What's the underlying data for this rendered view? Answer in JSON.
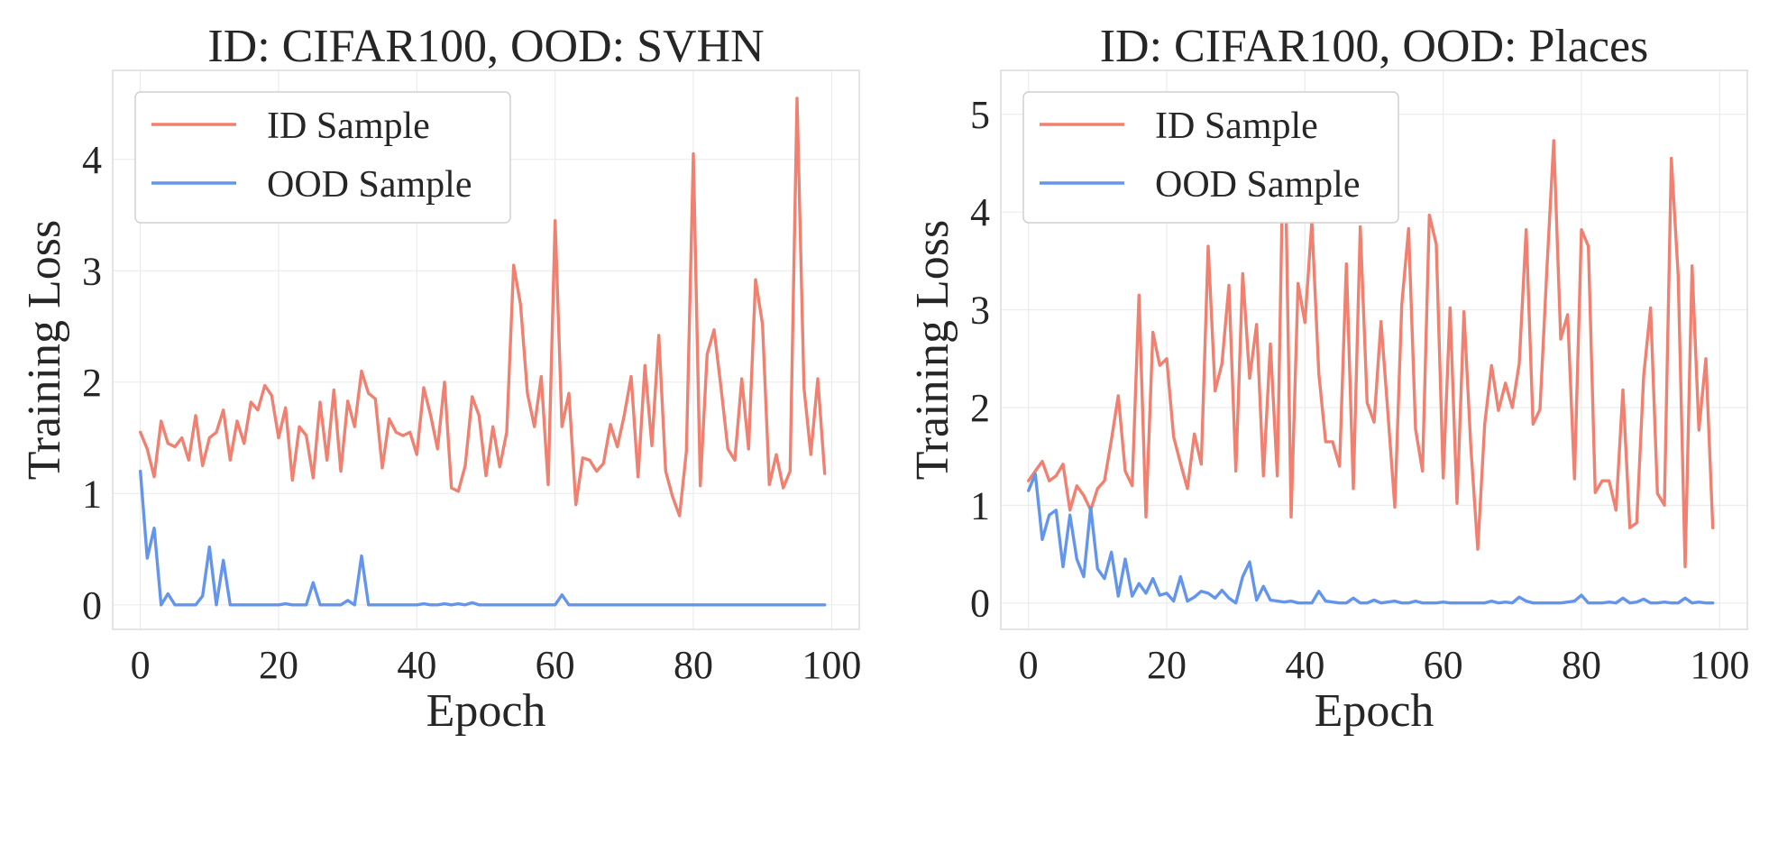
{
  "colors": {
    "id_sample": "#f08070",
    "ood_sample": "#6495ed"
  },
  "chart_data": [
    {
      "type": "line",
      "title": "ID: CIFAR100, OOD: SVHN",
      "xlabel": "Epoch",
      "ylabel": "Training Loss",
      "xlim": [
        -4,
        104
      ],
      "ylim": [
        -0.22,
        4.8
      ],
      "xticks": [
        0,
        20,
        40,
        60,
        80,
        100
      ],
      "yticks": [
        0,
        1,
        2,
        3,
        4
      ],
      "grid": true,
      "legend_position": "upper-left",
      "series": [
        {
          "name": "ID Sample",
          "color": "#f08070",
          "x": [
            0,
            1,
            2,
            3,
            4,
            5,
            6,
            7,
            8,
            9,
            10,
            11,
            12,
            13,
            14,
            15,
            16,
            17,
            18,
            19,
            20,
            21,
            22,
            23,
            24,
            25,
            26,
            27,
            28,
            29,
            30,
            31,
            32,
            33,
            34,
            35,
            36,
            37,
            38,
            39,
            40,
            41,
            42,
            43,
            44,
            45,
            46,
            47,
            48,
            49,
            50,
            51,
            52,
            53,
            54,
            55,
            56,
            57,
            58,
            59,
            60,
            61,
            62,
            63,
            64,
            65,
            66,
            67,
            68,
            69,
            70,
            71,
            72,
            73,
            74,
            75,
            76,
            77,
            78,
            79,
            80,
            81,
            82,
            83,
            84,
            85,
            86,
            87,
            88,
            89,
            90,
            91,
            92,
            93,
            94,
            95,
            96,
            97,
            98,
            99
          ],
          "values": [
            1.55,
            1.4,
            1.15,
            1.65,
            1.45,
            1.42,
            1.5,
            1.3,
            1.7,
            1.25,
            1.5,
            1.55,
            1.75,
            1.3,
            1.65,
            1.45,
            1.82,
            1.75,
            1.97,
            1.88,
            1.5,
            1.77,
            1.12,
            1.6,
            1.52,
            1.14,
            1.82,
            1.3,
            1.93,
            1.2,
            1.83,
            1.6,
            2.1,
            1.9,
            1.85,
            1.23,
            1.67,
            1.55,
            1.52,
            1.55,
            1.35,
            1.95,
            1.7,
            1.4,
            2.0,
            1.05,
            1.02,
            1.25,
            1.87,
            1.7,
            1.16,
            1.6,
            1.24,
            1.55,
            3.05,
            2.7,
            1.9,
            1.6,
            2.05,
            1.08,
            3.45,
            1.6,
            1.9,
            0.9,
            1.32,
            1.3,
            1.2,
            1.27,
            1.62,
            1.42,
            1.7,
            2.05,
            1.15,
            2.15,
            1.43,
            2.42,
            1.2,
            0.97,
            0.8,
            1.38,
            4.05,
            1.07,
            2.25,
            2.47,
            1.95,
            1.4,
            1.3,
            2.03,
            1.4,
            2.92,
            2.52,
            1.08,
            1.35,
            1.05,
            1.2,
            4.55,
            1.95,
            1.35,
            2.03,
            1.18
          ]
        },
        {
          "name": "OOD Sample",
          "color": "#6495ed",
          "x": [
            0,
            1,
            2,
            3,
            4,
            5,
            6,
            7,
            8,
            9,
            10,
            11,
            12,
            13,
            14,
            15,
            16,
            17,
            18,
            19,
            20,
            21,
            22,
            23,
            24,
            25,
            26,
            27,
            28,
            29,
            30,
            31,
            32,
            33,
            34,
            35,
            36,
            37,
            38,
            39,
            40,
            41,
            42,
            43,
            44,
            45,
            46,
            47,
            48,
            49,
            50,
            51,
            52,
            53,
            54,
            55,
            56,
            57,
            58,
            59,
            60,
            61,
            62,
            63,
            64,
            65,
            66,
            67,
            68,
            69,
            70,
            71,
            72,
            73,
            74,
            75,
            76,
            77,
            78,
            79,
            80,
            81,
            82,
            83,
            84,
            85,
            86,
            87,
            88,
            89,
            90,
            91,
            92,
            93,
            94,
            95,
            96,
            97,
            98,
            99
          ],
          "values": [
            1.2,
            0.42,
            0.69,
            0.0,
            0.1,
            0.0,
            0.0,
            0.0,
            0.0,
            0.08,
            0.52,
            0.0,
            0.4,
            0.0,
            0.0,
            0.0,
            0.0,
            0.0,
            0.0,
            0.0,
            0.0,
            0.01,
            0.0,
            0.0,
            0.0,
            0.2,
            0.0,
            0.0,
            0.0,
            0.0,
            0.04,
            0.0,
            0.44,
            0.0,
            0.0,
            0.0,
            0.0,
            0.0,
            0.0,
            0.0,
            0.0,
            0.01,
            0.0,
            0.0,
            0.01,
            0.0,
            0.01,
            0.0,
            0.02,
            0.0,
            0.0,
            0.0,
            0.0,
            0.0,
            0.0,
            0.0,
            0.0,
            0.0,
            0.0,
            0.0,
            0.0,
            0.09,
            0.0,
            0.0,
            0.0,
            0.0,
            0.0,
            0.0,
            0.0,
            0.0,
            0.0,
            0.0,
            0.0,
            0.0,
            0.0,
            0.0,
            0.0,
            0.0,
            0.0,
            0.0,
            0.0,
            0.0,
            0.0,
            0.0,
            0.0,
            0.0,
            0.0,
            0.0,
            0.0,
            0.0,
            0.0,
            0.0,
            0.0,
            0.0,
            0.0,
            0.0,
            0.0,
            0.0,
            0.0,
            0.0
          ]
        }
      ]
    },
    {
      "type": "line",
      "title": "ID: CIFAR100, OOD: Places",
      "xlabel": "Epoch",
      "ylabel": "Training Loss",
      "xlim": [
        -4,
        104
      ],
      "ylim": [
        -0.27,
        5.45
      ],
      "xticks": [
        0,
        20,
        40,
        60,
        80,
        100
      ],
      "yticks": [
        0,
        1,
        2,
        3,
        4,
        5
      ],
      "grid": true,
      "legend_position": "upper-left",
      "series": [
        {
          "name": "ID Sample",
          "color": "#f08070",
          "x": [
            0,
            1,
            2,
            3,
            4,
            5,
            6,
            7,
            8,
            9,
            10,
            11,
            12,
            13,
            14,
            15,
            16,
            17,
            18,
            19,
            20,
            21,
            22,
            23,
            24,
            25,
            26,
            27,
            28,
            29,
            30,
            31,
            32,
            33,
            34,
            35,
            36,
            37,
            38,
            39,
            40,
            41,
            42,
            43,
            44,
            45,
            46,
            47,
            48,
            49,
            50,
            51,
            52,
            53,
            54,
            55,
            56,
            57,
            58,
            59,
            60,
            61,
            62,
            63,
            64,
            65,
            66,
            67,
            68,
            69,
            70,
            71,
            72,
            73,
            74,
            75,
            76,
            77,
            78,
            79,
            80,
            81,
            82,
            83,
            84,
            85,
            86,
            87,
            88,
            89,
            90,
            91,
            92,
            93,
            94,
            95,
            96,
            97,
            98,
            99
          ],
          "values": [
            1.25,
            1.35,
            1.45,
            1.25,
            1.3,
            1.42,
            0.95,
            1.2,
            1.1,
            0.95,
            1.17,
            1.25,
            1.67,
            2.12,
            1.35,
            1.2,
            3.15,
            0.88,
            2.77,
            2.43,
            2.5,
            1.7,
            1.43,
            1.17,
            1.73,
            1.42,
            3.65,
            2.17,
            2.45,
            3.25,
            1.35,
            3.37,
            2.3,
            2.85,
            1.3,
            2.65,
            1.3,
            5.2,
            0.88,
            3.27,
            2.87,
            3.9,
            2.35,
            1.65,
            1.65,
            1.4,
            3.47,
            1.17,
            3.85,
            2.05,
            1.85,
            2.88,
            1.95,
            0.98,
            3.05,
            3.83,
            1.78,
            1.35,
            3.97,
            3.67,
            1.28,
            3.02,
            1.02,
            2.98,
            1.6,
            0.55,
            1.83,
            2.43,
            1.97,
            2.25,
            2.0,
            2.45,
            3.82,
            1.83,
            1.98,
            3.42,
            4.73,
            2.7,
            2.95,
            1.27,
            3.82,
            3.65,
            1.13,
            1.25,
            1.25,
            0.95,
            2.18,
            0.77,
            0.82,
            2.32,
            3.02,
            1.12,
            1.0,
            4.55,
            3.35,
            0.37,
            3.45,
            1.77,
            2.5,
            0.77
          ]
        },
        {
          "name": "OOD Sample",
          "color": "#6495ed",
          "x": [
            0,
            1,
            2,
            3,
            4,
            5,
            6,
            7,
            8,
            9,
            10,
            11,
            12,
            13,
            14,
            15,
            16,
            17,
            18,
            19,
            20,
            21,
            22,
            23,
            24,
            25,
            26,
            27,
            28,
            29,
            30,
            31,
            32,
            33,
            34,
            35,
            36,
            37,
            38,
            39,
            40,
            41,
            42,
            43,
            44,
            45,
            46,
            47,
            48,
            49,
            50,
            51,
            52,
            53,
            54,
            55,
            56,
            57,
            58,
            59,
            60,
            61,
            62,
            63,
            64,
            65,
            66,
            67,
            68,
            69,
            70,
            71,
            72,
            73,
            74,
            75,
            76,
            77,
            78,
            79,
            80,
            81,
            82,
            83,
            84,
            85,
            86,
            87,
            88,
            89,
            90,
            91,
            92,
            93,
            94,
            95,
            96,
            97,
            98,
            99
          ],
          "values": [
            1.15,
            1.32,
            0.65,
            0.9,
            0.95,
            0.37,
            0.9,
            0.45,
            0.27,
            0.98,
            0.35,
            0.25,
            0.52,
            0.07,
            0.45,
            0.07,
            0.2,
            0.1,
            0.25,
            0.08,
            0.1,
            0.02,
            0.27,
            0.02,
            0.06,
            0.12,
            0.1,
            0.05,
            0.13,
            0.05,
            0.0,
            0.27,
            0.42,
            0.03,
            0.17,
            0.03,
            0.02,
            0.01,
            0.02,
            0.0,
            0.0,
            0.0,
            0.12,
            0.02,
            0.01,
            0.0,
            0.0,
            0.05,
            0.0,
            0.0,
            0.03,
            0.0,
            0.01,
            0.02,
            0.0,
            0.0,
            0.02,
            0.0,
            0.0,
            0.0,
            0.01,
            0.0,
            0.0,
            0.0,
            0.0,
            0.0,
            0.0,
            0.02,
            0.0,
            0.01,
            0.0,
            0.06,
            0.02,
            0.0,
            0.0,
            0.0,
            0.0,
            0.0,
            0.01,
            0.02,
            0.08,
            0.0,
            0.0,
            0.0,
            0.01,
            0.0,
            0.05,
            0.0,
            0.01,
            0.04,
            0.0,
            0.0,
            0.01,
            0.0,
            0.0,
            0.05,
            0.0,
            0.01,
            0.0,
            0.0
          ]
        }
      ]
    }
  ]
}
